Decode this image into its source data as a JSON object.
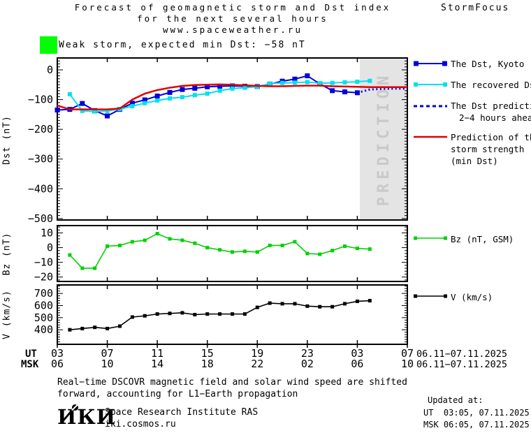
{
  "header": {
    "title_line1": "Forecast of geomagnetic storm and Dst index",
    "title_line2": "for the next several hours",
    "title_line3": "www.spaceweather.ru",
    "brand": "StormFocus",
    "storm_level_color": "#00ff00",
    "storm_status": "Weak storm, expected min Dst: −58 nT"
  },
  "legend": {
    "dst_kyoto": "The Dst, Kyoto",
    "recovered": "The recovered Dst",
    "prediction_l1": "The Dst prediction",
    "prediction_l2": "2−4 hours ahead",
    "strength_l1": "Prediction of the",
    "strength_l2": "storm strength",
    "strength_l3": "(min Dst)",
    "bz": "Bz (nT, GSM)",
    "v": "V (km/s)"
  },
  "footer": {
    "note_l1": "Real−time DSCOVR magnetic field and solar wind speed are shifted",
    "note_l2": "forward, accounting for L1−Earth propagation",
    "logo": "ИКИ",
    "institute": "Space Research Institute RAS",
    "site": "iki.cosmos.ru",
    "updated_label": "Updated at:",
    "updated_ut": "UT  03:05, 07.11.2025",
    "updated_msk": "MSK 06:05, 07.11.2025"
  },
  "chart_data": {
    "type": "line",
    "grid": false,
    "x_axis": {
      "tick_hours": [
        3,
        7,
        11,
        15,
        19,
        23,
        27,
        31
      ],
      "labels_ut": [
        "03",
        "07",
        "11",
        "15",
        "19",
        "23",
        "03",
        "07"
      ],
      "labels_msk": [
        "06",
        "10",
        "14",
        "18",
        "22",
        "02",
        "06",
        "10"
      ],
      "row_label_ut": "UT",
      "row_label_msk": "MSK",
      "date_range": "06.11−07.11.2025"
    },
    "panels": [
      {
        "name": "dst",
        "ylabel": "Dst (nT)",
        "ylim": [
          -505,
          40
        ],
        "yticks": [
          0,
          -100,
          -200,
          -300,
          -400,
          -500
        ],
        "minor_step": 10,
        "prediction_band": {
          "start_hour": 27.2,
          "end_hour": 31,
          "label": "PREDICTION",
          "fill": "#e4e4e4",
          "text_color": "#c9c9c9"
        },
        "series": [
          {
            "name": "The Dst, Kyoto",
            "color": "#0000dd",
            "line_width": 2,
            "marker": 7,
            "x": [
              3,
              4,
              5,
              6,
              7,
              8,
              9,
              10,
              11,
              12,
              13,
              14,
              15,
              16,
              17,
              18,
              19,
              20,
              21,
              22,
              23,
              24,
              25,
              26,
              27
            ],
            "values": [
              -135,
              -133,
              -113,
              -137,
              -155,
              -133,
              -112,
              -101,
              -88,
              -76,
              -66,
              -62,
              -57,
              -55,
              -54,
              -55,
              -56,
              -48,
              -38,
              -31,
              -20,
              -47,
              -70,
              -74,
              -77
            ]
          },
          {
            "name": "The recovered Dst",
            "color": "#00e0ee",
            "line_width": 2,
            "marker": 6,
            "x": [
              4,
              5,
              6,
              7,
              8,
              9,
              10,
              11,
              12,
              13,
              14,
              15,
              16,
              17,
              18,
              19,
              20,
              21,
              22,
              23,
              24,
              25,
              26,
              27,
              28
            ],
            "values": [
              -82,
              -138,
              -140,
              -138,
              -132,
              -122,
              -112,
              -103,
              -96,
              -92,
              -85,
              -80,
              -70,
              -63,
              -60,
              -57,
              -46,
              -44,
              -43,
              -41,
              -45,
              -44,
              -42,
              -40,
              -37
            ]
          },
          {
            "name": "The Dst prediction 2−4 hours ahead",
            "color": "#0000dd",
            "line_width": 3,
            "dash": "2 3.5",
            "marker": 0,
            "x": [
              27,
              28,
              29,
              30,
              31
            ],
            "values": [
              -77,
              -66,
              -64,
              -63,
              -63
            ]
          },
          {
            "name": "Prediction of the storm strength (min Dst)",
            "color": "#e00000",
            "line_width": 2.5,
            "marker": 0,
            "x": [
              3,
              4,
              5,
              6,
              7,
              8,
              9,
              10,
              11,
              12,
              13,
              14,
              15,
              16,
              17,
              18,
              19,
              20,
              21,
              22,
              23,
              24,
              25,
              26,
              27,
              28,
              29,
              30,
              31
            ],
            "values": [
              -120,
              -133,
              -133,
              -133,
              -133,
              -130,
              -100,
              -80,
              -68,
              -60,
              -54,
              -51,
              -50,
              -49,
              -50,
              -52,
              -54,
              -55,
              -55,
              -54,
              -53,
              -53,
              -55,
              -56,
              -57,
              -58,
              -58,
              -58,
              -58
            ]
          }
        ]
      },
      {
        "name": "bz",
        "ylabel": "Bz (nT)",
        "ylim": [
          -23,
          15
        ],
        "yticks": [
          10,
          0,
          -10,
          -20
        ],
        "minor_step": 2,
        "series": [
          {
            "name": "Bz (nT, GSM)",
            "color": "#00d000",
            "line_width": 1.6,
            "marker": 5,
            "x": [
              4,
              5,
              6,
              7,
              8,
              9,
              10,
              11,
              12,
              13,
              14,
              15,
              16,
              17,
              18,
              19,
              20,
              21,
              22,
              23,
              24,
              25,
              26,
              27,
              28
            ],
            "values": [
              -5,
              -14,
              -14,
              1,
              1.5,
              4,
              5,
              9.5,
              6,
              5,
              3,
              0,
              -1.5,
              -3,
              -2.5,
              -3,
              1.5,
              1.5,
              4,
              -4,
              -4.5,
              -2,
              1,
              -0.5,
              -1
            ]
          }
        ]
      },
      {
        "name": "v",
        "ylabel": "V (km/s)",
        "ylim": [
          280,
          770
        ],
        "yticks": [
          700,
          600,
          500,
          400
        ],
        "minor_step": 20,
        "series": [
          {
            "name": "V (km/s)",
            "color": "#000000",
            "line_width": 1.6,
            "marker": 5,
            "x": [
              4,
              5,
              6,
              7,
              8,
              9,
              10,
              11,
              12,
              13,
              14,
              15,
              16,
              17,
              18,
              19,
              20,
              21,
              22,
              23,
              24,
              25,
              26,
              27,
              28
            ],
            "values": [
              400,
              410,
              420,
              410,
              430,
              505,
              515,
              530,
              535,
              540,
              525,
              530,
              530,
              530,
              530,
              585,
              620,
              615,
              615,
              595,
              590,
              590,
              615,
              635,
              640
            ]
          }
        ]
      }
    ]
  }
}
